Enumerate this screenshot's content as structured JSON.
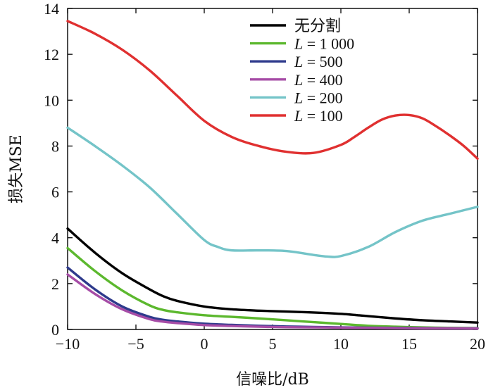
{
  "chart_data": {
    "type": "line",
    "title": "",
    "xlabel": "信噪比/dB",
    "ylabel": "损失MSE",
    "xlim": [
      -10,
      20
    ],
    "ylim": [
      0,
      14
    ],
    "xticks": [
      -10,
      -5,
      0,
      5,
      10,
      15,
      20
    ],
    "yticks": [
      0,
      2,
      4,
      6,
      8,
      10,
      12,
      14
    ],
    "xtick_labels": [
      "−10",
      "−5",
      "0",
      "5",
      "10",
      "15",
      "20"
    ],
    "ytick_labels": [
      "0",
      "2",
      "4",
      "6",
      "8",
      "10",
      "12",
      "14"
    ],
    "legend_position": "top-right",
    "series": [
      {
        "name": "无分割",
        "legend_prefix": "",
        "legend_value": "无分割",
        "color": "#000000",
        "x": [
          -10,
          -8,
          -6,
          -4,
          -3,
          -2,
          0,
          2,
          4,
          6,
          8,
          10,
          12,
          14,
          16,
          18,
          20
        ],
        "y": [
          4.4,
          3.35,
          2.45,
          1.75,
          1.45,
          1.25,
          1.0,
          0.88,
          0.82,
          0.78,
          0.74,
          0.68,
          0.58,
          0.48,
          0.4,
          0.35,
          0.3
        ]
      },
      {
        "name": "L = 1 000",
        "legend_prefix": "L",
        "legend_value": " = 1 000",
        "color": "#5cb82e",
        "x": [
          -10,
          -8,
          -6,
          -4,
          -3,
          -2,
          0,
          2,
          4,
          6,
          8,
          10,
          12,
          14,
          16,
          18,
          20
        ],
        "y": [
          3.55,
          2.55,
          1.7,
          1.05,
          0.85,
          0.75,
          0.62,
          0.55,
          0.48,
          0.4,
          0.32,
          0.24,
          0.16,
          0.12,
          0.09,
          0.07,
          0.06
        ]
      },
      {
        "name": "L = 500",
        "legend_prefix": "L",
        "legend_value": " = 500",
        "color": "#2e3a8c",
        "x": [
          -10,
          -8,
          -6,
          -4,
          -3,
          -2,
          0,
          2,
          4,
          6,
          8,
          10,
          12,
          14,
          16,
          18,
          20
        ],
        "y": [
          2.7,
          1.75,
          1.0,
          0.55,
          0.42,
          0.35,
          0.25,
          0.2,
          0.16,
          0.13,
          0.11,
          0.09,
          0.08,
          0.07,
          0.06,
          0.05,
          0.05
        ]
      },
      {
        "name": "L = 400",
        "legend_prefix": "L",
        "legend_value": " = 400",
        "color": "#a64ca6",
        "x": [
          -10,
          -8,
          -6,
          -4,
          -3,
          -2,
          0,
          2,
          4,
          6,
          8,
          10,
          12,
          14,
          16,
          18,
          20
        ],
        "y": [
          2.4,
          1.55,
          0.88,
          0.45,
          0.34,
          0.28,
          0.19,
          0.15,
          0.12,
          0.1,
          0.09,
          0.08,
          0.07,
          0.06,
          0.05,
          0.05,
          0.04
        ]
      },
      {
        "name": "L = 200",
        "legend_prefix": "L",
        "legend_value": " = 200",
        "color": "#74c4c8",
        "x": [
          -10,
          -8,
          -6,
          -4,
          -2,
          0,
          1,
          2,
          4,
          6,
          8,
          9,
          10,
          12,
          14,
          16,
          18,
          20
        ],
        "y": [
          8.8,
          8.0,
          7.15,
          6.2,
          5.05,
          3.9,
          3.6,
          3.45,
          3.45,
          3.42,
          3.25,
          3.18,
          3.2,
          3.6,
          4.25,
          4.75,
          5.05,
          5.35
        ]
      },
      {
        "name": "L = 100",
        "legend_prefix": "L",
        "legend_value": " = 100",
        "color": "#e03030",
        "x": [
          -10,
          -8,
          -6,
          -4,
          -2,
          0,
          2,
          4,
          6,
          8,
          10,
          11,
          12,
          13,
          14,
          15,
          16,
          17,
          18,
          19,
          20
        ],
        "y": [
          13.45,
          12.9,
          12.2,
          11.3,
          10.2,
          9.1,
          8.4,
          8.0,
          7.75,
          7.7,
          8.05,
          8.4,
          8.8,
          9.15,
          9.33,
          9.35,
          9.2,
          8.85,
          8.45,
          8.0,
          7.45
        ]
      }
    ]
  }
}
